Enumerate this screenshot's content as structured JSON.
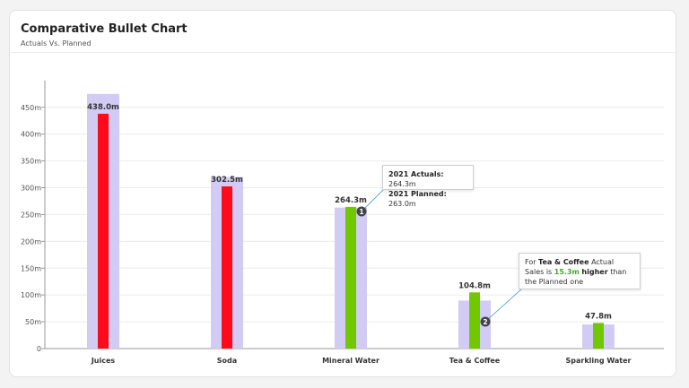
{
  "card": {
    "title": "Comparative Bullet Chart",
    "subtitle": "Actuals Vs. Planned"
  },
  "chart_data": {
    "type": "bar",
    "categories": [
      "Juices",
      "Soda",
      "Mineral Water",
      "Tea & Coffee",
      "Sparkling Water"
    ],
    "series": [
      {
        "name": "2021 Planned",
        "values": [
          475.0,
          320.0,
          263.0,
          89.5,
          45.0
        ]
      },
      {
        "name": "2021 Actuals",
        "values": [
          438.0,
          302.5,
          264.3,
          104.8,
          47.8
        ]
      }
    ],
    "data_labels": [
      "438.0m",
      "302.5m",
      "264.3m",
      "104.8m",
      "47.8m"
    ],
    "y_ticks": [
      "0",
      "50m",
      "100m",
      "150m",
      "200m",
      "250m",
      "300m",
      "350m",
      "400m",
      "450m"
    ],
    "ylim": [
      0,
      500
    ],
    "grid": true,
    "colors": {
      "planned": "#d2cbf3",
      "actual_below": "#ff0a1a",
      "actual_above": "#72c800"
    },
    "annotations": [
      {
        "marker": "1",
        "category_index": 2,
        "lines": [
          {
            "label": "2021 Actuals:",
            "value": "264.3m"
          },
          {
            "label": "2021 Planned:",
            "value": "263.0m"
          }
        ]
      },
      {
        "marker": "2",
        "category_index": 3,
        "text_prefix": "For",
        "category": "Tea & Coffee",
        "text_mid": "Actual Sales is",
        "difference": "15.3m",
        "emphasis": "higher",
        "text_suffix": "than the Planned one"
      }
    ]
  }
}
